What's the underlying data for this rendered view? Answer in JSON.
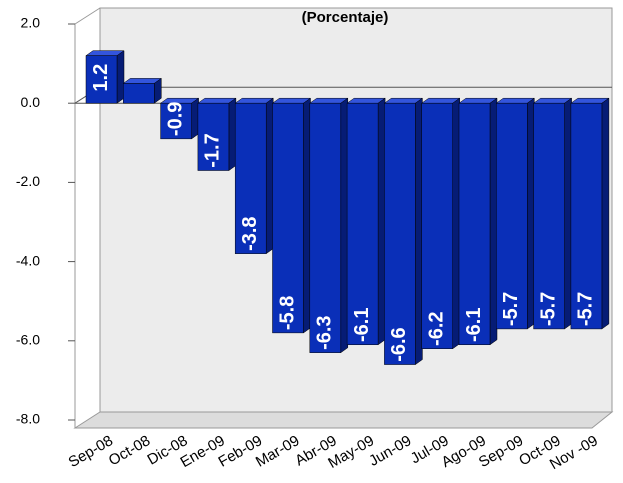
{
  "chart_data": {
    "type": "bar",
    "subtitle": "(Porcentaje)",
    "categories": [
      "Sep-08",
      "Oct-08",
      "Dic-08",
      "Ene-09",
      "Feb-09",
      "Mar-09",
      "Abr-09",
      "May-09",
      "Jun-09",
      "Jul-09",
      "Ago-09",
      "Sep-09",
      "Oct-09",
      "Nov -09"
    ],
    "values": [
      1.2,
      0.5,
      -0.9,
      -1.7,
      -3.8,
      -5.8,
      -6.3,
      -6.1,
      -6.6,
      -6.2,
      -6.1,
      -5.7,
      -5.7,
      -5.7
    ],
    "value_labels": [
      "1.2",
      null,
      "-0.9",
      "-1.7",
      "-3.8",
      "-5.8",
      "-6.3",
      "-6.1",
      "-6.6",
      "-6.2",
      "-6.1",
      "-5.7",
      "-5.7",
      "-5.7"
    ],
    "color": "#0a2fb8",
    "ylim": [
      -8,
      2
    ],
    "yticks": [
      {
        "value": 2,
        "label": "2.0"
      },
      {
        "value": 0,
        "label": "0.0"
      },
      {
        "value": -2,
        "label": "-2.0"
      },
      {
        "value": -4,
        "label": "-4.0"
      },
      {
        "value": -6,
        "label": "-6.0"
      },
      {
        "value": -8,
        "label": "-8.0"
      }
    ]
  }
}
